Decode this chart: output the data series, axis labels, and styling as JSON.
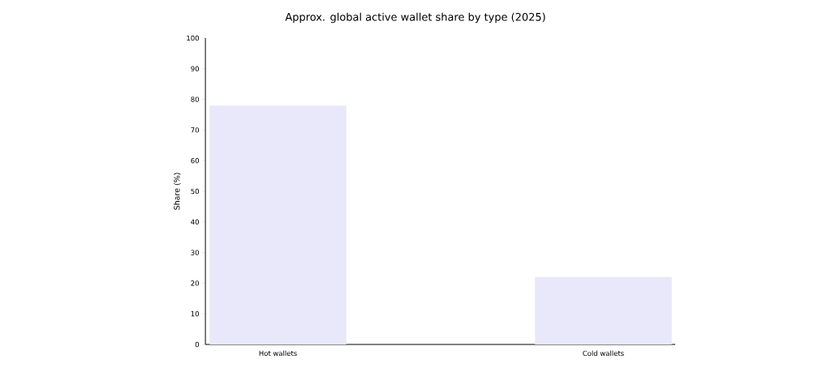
{
  "chart_data": {
    "type": "bar",
    "title": "Approx. global active wallet share by type (2025)",
    "ylabel": "Share (%)",
    "categories": [
      "Hot wallets",
      "Cold wallets"
    ],
    "values": [
      78,
      22
    ],
    "color": "#e8e8fa",
    "ylim": [
      0,
      100
    ],
    "yticks": [
      0,
      10,
      20,
      30,
      40,
      50,
      60,
      70,
      80,
      90,
      100
    ],
    "grid": false
  }
}
